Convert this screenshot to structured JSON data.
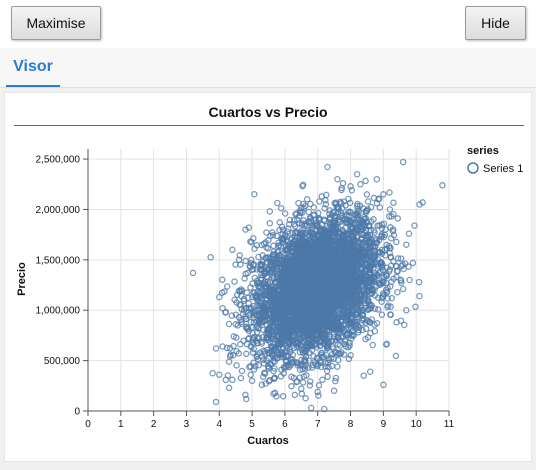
{
  "toolbar": {
    "maximise_label": "Maximise",
    "hide_label": "Hide"
  },
  "tabs": [
    {
      "label": "Visor",
      "active": true
    }
  ],
  "colors": {
    "accent": "#2a7ccf",
    "point": "#4c78a8"
  },
  "chart_data": {
    "type": "scatter",
    "title": "Cuartos vs Precio",
    "xlabel": "Cuartos",
    "ylabel": "Precio",
    "xlim": [
      0,
      11
    ],
    "ylim": [
      0,
      2600000
    ],
    "x_ticks": [
      0,
      1,
      2,
      3,
      4,
      5,
      6,
      7,
      8,
      9,
      10,
      11
    ],
    "x_tick_labels": [
      "0",
      "1",
      "2",
      "3",
      "4",
      "5",
      "6",
      "7",
      "8",
      "9",
      "10",
      "11"
    ],
    "y_ticks": [
      0,
      500000,
      1000000,
      1500000,
      2000000,
      2500000
    ],
    "y_tick_labels": [
      "0",
      "500,000",
      "1,000,000",
      "1,500,000",
      "2,000,000",
      "2,500,000"
    ],
    "grid": true,
    "legend": {
      "title": "series",
      "placement": "top-right"
    },
    "series": [
      {
        "name": "Series 1",
        "color": "#4c78a8",
        "marker": "open-circle",
        "core_distribution": {
          "x_mean": 6.95,
          "x_sd": 1.0,
          "y_mean": 1230000,
          "y_sd": 340000,
          "correlation": 0.33,
          "count": 4800
        },
        "outliers": [
          [
            3.2,
            1370000
          ],
          [
            3.9,
            90000
          ],
          [
            3.9,
            620000
          ],
          [
            4.0,
            1130000
          ],
          [
            4.0,
            360000
          ],
          [
            4.1,
            640000
          ],
          [
            4.2,
            310000
          ],
          [
            4.3,
            230000
          ],
          [
            4.4,
            1600000
          ],
          [
            4.4,
            310000
          ],
          [
            4.5,
            860000
          ],
          [
            4.6,
            1500000
          ],
          [
            4.8,
            1800000
          ],
          [
            4.9,
            1820000
          ],
          [
            5.0,
            300000
          ],
          [
            5.3,
            260000
          ],
          [
            5.5,
            420000
          ],
          [
            5.7,
            180000
          ],
          [
            6.2,
            340000
          ],
          [
            6.3,
            160000
          ],
          [
            6.5,
            220000
          ],
          [
            6.8,
            30000
          ],
          [
            7.0,
            190000
          ],
          [
            7.2,
            20000
          ],
          [
            7.3,
            340000
          ],
          [
            7.5,
            200000
          ],
          [
            7.6,
            2300000
          ],
          [
            7.6,
            440000
          ],
          [
            7.8,
            560000
          ],
          [
            8.0,
            2230000
          ],
          [
            8.2,
            2350000
          ],
          [
            8.3,
            2250000
          ],
          [
            8.4,
            350000
          ],
          [
            8.6,
            390000
          ],
          [
            8.8,
            2300000
          ],
          [
            9.0,
            260000
          ],
          [
            9.0,
            2150000
          ],
          [
            9.2,
            2000000
          ],
          [
            9.3,
            1800000
          ],
          [
            9.4,
            880000
          ],
          [
            9.6,
            2470000
          ],
          [
            9.7,
            1000000
          ],
          [
            9.7,
            1650000
          ],
          [
            9.8,
            1300000
          ],
          [
            9.9,
            1470000
          ],
          [
            10.1,
            2050000
          ],
          [
            10.1,
            1140000
          ],
          [
            10.8,
            2240000
          ],
          [
            10.2,
            2070000
          ]
        ]
      }
    ]
  }
}
